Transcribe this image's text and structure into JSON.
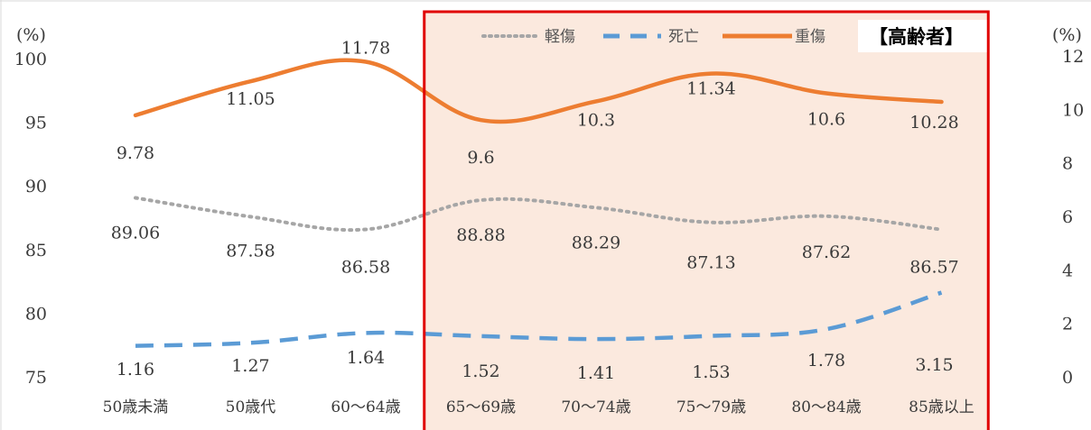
{
  "chart_data": {
    "type": "line",
    "categories": [
      "50歳未満",
      "50歳代",
      "60～64歳",
      "65～69歳",
      "70～74歳",
      "75～79歳",
      "80～84歳",
      "85歳以上"
    ],
    "series": [
      {
        "name": "軽傷",
        "axis": "left",
        "style": "dotted",
        "color": "#a6a6a6",
        "values": [
          89.06,
          87.58,
          86.58,
          88.88,
          88.29,
          87.13,
          87.62,
          86.57
        ]
      },
      {
        "name": "死亡",
        "axis": "right",
        "style": "dashed",
        "color": "#5b9bd5",
        "values": [
          1.16,
          1.27,
          1.64,
          1.52,
          1.41,
          1.53,
          1.78,
          3.15
        ]
      },
      {
        "name": "重傷",
        "axis": "right",
        "style": "solid",
        "color": "#ed7d31",
        "values": [
          9.78,
          11.05,
          11.78,
          9.6,
          10.3,
          11.34,
          10.6,
          10.28
        ]
      }
    ],
    "data_labels": {
      "軽傷": [
        "89.06",
        "87.58",
        "86.58",
        "88.88",
        "88.29",
        "87.13",
        "87.62",
        "86.57"
      ],
      "死亡": [
        "1.16",
        "1.27",
        "1.64",
        "1.52",
        "1.41",
        "1.53",
        "1.78",
        "3.15"
      ],
      "重傷": [
        "9.78",
        "11.05",
        "11.78",
        "9.6",
        "10.3",
        "11.34",
        "10.6",
        "10.28"
      ]
    },
    "y_left": {
      "unit_label": "(%)",
      "ylim": [
        75,
        100
      ],
      "ticks": [
        "100",
        "95",
        "90",
        "85",
        "80",
        "75"
      ]
    },
    "y_right": {
      "unit_label": "(%)",
      "ylim": [
        0,
        12
      ],
      "ticks": [
        "12",
        "10",
        "8",
        "6",
        "4",
        "2",
        "0"
      ]
    },
    "legend": {
      "position": "top",
      "entries": [
        "軽傷",
        "死亡",
        "重傷"
      ]
    },
    "grid": false,
    "highlight": {
      "label": "【高齢者】",
      "from_category": "65～69歳",
      "to_category": "85歳以上",
      "border_color": "#e00000",
      "fill_color": "#fbe9de"
    }
  }
}
